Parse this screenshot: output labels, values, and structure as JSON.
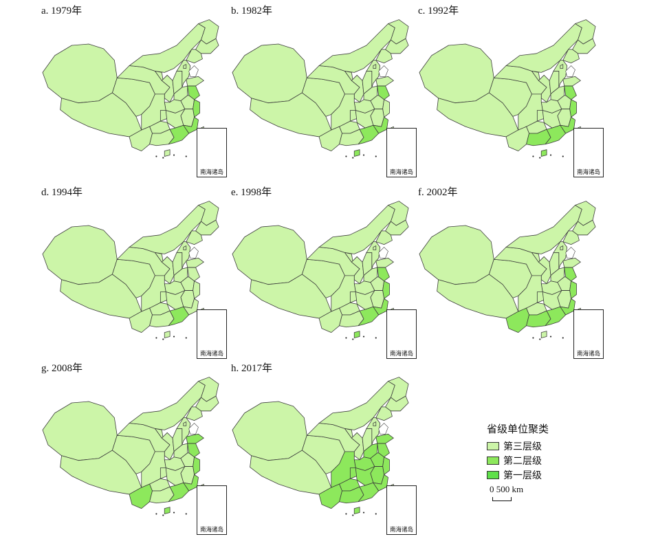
{
  "panels": [
    {
      "title": "a. 1979年",
      "inset_label": "南海诸岛",
      "tier_two": [
        "jiangsu",
        "zhejiang",
        "fujian",
        "guangdong"
      ],
      "tier_one": []
    },
    {
      "title": "b. 1982年",
      "inset_label": "南海诸岛",
      "tier_two": [
        "jiangsu",
        "fujian",
        "guangdong",
        "hainan"
      ],
      "tier_one": []
    },
    {
      "title": "c. 1992年",
      "inset_label": "南海诸岛",
      "tier_two": [
        "jiangsu",
        "zhejiang",
        "fujian",
        "guangdong",
        "guangxi",
        "hainan"
      ],
      "tier_one": []
    },
    {
      "title": "d. 1994年",
      "inset_label": "南海诸岛",
      "tier_two": [
        "guangdong"
      ],
      "tier_one": []
    },
    {
      "title": "e. 1998年",
      "inset_label": "南海诸岛",
      "tier_two": [
        "jiangsu",
        "zhejiang",
        "fujian",
        "guangdong",
        "hainan"
      ],
      "tier_one": []
    },
    {
      "title": "f. 2002年",
      "inset_label": "南海诸岛",
      "tier_two": [
        "jiangsu",
        "zhejiang",
        "fujian",
        "guangdong",
        "guangxi",
        "yunnan"
      ],
      "tier_one": []
    },
    {
      "title": "g. 2008年",
      "inset_label": "南海诸岛",
      "tier_two": [
        "shandong",
        "jiangsu",
        "zhejiang",
        "fujian",
        "guangdong",
        "yunnan",
        "hainan"
      ],
      "tier_one": []
    },
    {
      "title": "h. 2017年",
      "inset_label": "南海诸岛",
      "tier_two": [
        "yunnan",
        "guangxi",
        "guangdong",
        "hunan",
        "jiangxi",
        "hubei",
        "anhui",
        "jiangsu",
        "zhejiang",
        "fujian",
        "henan",
        "shandong",
        "sichuan",
        "guizhou",
        "chongqing",
        "hainan"
      ],
      "tier_one": []
    }
  ],
  "legend": {
    "title": "省级单位聚类",
    "items": [
      {
        "label": "第三层级",
        "color": "#ccf5a8"
      },
      {
        "label": "第二层级",
        "color": "#8de85c"
      },
      {
        "label": "第一层级",
        "color": "#5fe04a"
      }
    ]
  },
  "scale": {
    "label": "0 500 km"
  },
  "colors": {
    "base": "#ccf5a8",
    "tier_two": "#8de85c",
    "stroke": "#3a3a3a",
    "lake": "#ffffff"
  }
}
